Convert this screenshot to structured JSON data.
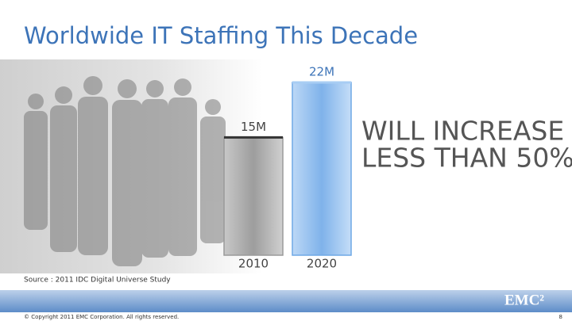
{
  "chart_data": {
    "type": "bar",
    "title": "Worldwide IT Staffing This Decade",
    "categories": [
      "2010",
      "2020"
    ],
    "values": [
      15,
      22
    ],
    "value_labels": [
      "15M",
      "22M"
    ],
    "colors": [
      "#9a9a9a",
      "#6fa8e6"
    ],
    "annotation": [
      "WILL INCREASE",
      "LESS THAN 50%"
    ],
    "source": "Source : 2011 IDC Digital Universe Study"
  },
  "footer": {
    "copyright": "© Copyright 2011 EMC Corporation. All rights reserved.",
    "logo": "EMC²",
    "page": "8"
  }
}
